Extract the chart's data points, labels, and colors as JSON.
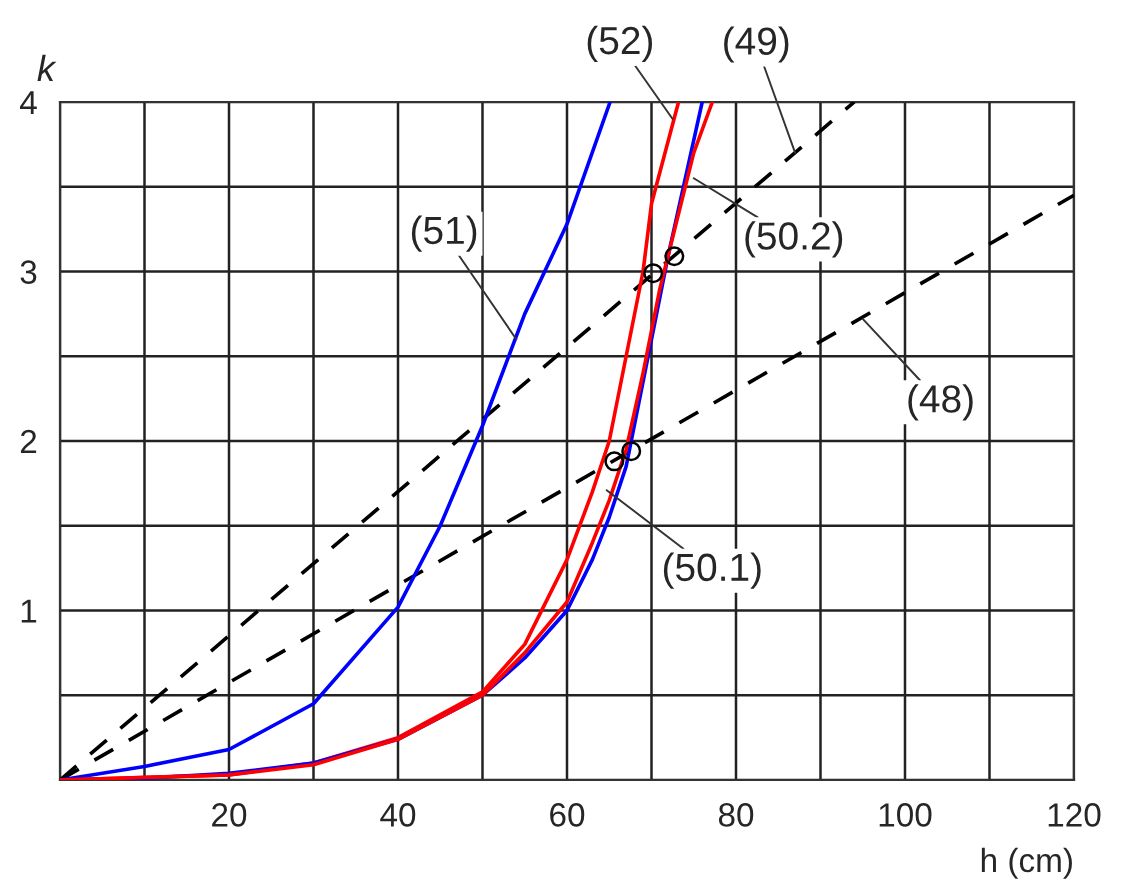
{
  "chart_data": {
    "type": "line",
    "xlabel": "h (cm)",
    "ylabel": "k",
    "xlim": [
      0,
      120
    ],
    "ylim": [
      0,
      4
    ],
    "xticks": [
      {
        "value": 0,
        "label": null
      },
      {
        "value": 10,
        "label": null
      },
      20,
      {
        "value": 30,
        "label": null
      },
      40,
      {
        "value": 50,
        "label": null
      },
      60,
      {
        "value": 70,
        "label": null
      },
      80,
      {
        "value": 90,
        "label": null
      },
      100,
      {
        "value": 110,
        "label": null
      },
      120
    ],
    "yticks": [
      {
        "value": 0,
        "label": null
      },
      {
        "value": 0.5,
        "label": null
      },
      1,
      {
        "value": 1.5,
        "label": null
      },
      2,
      {
        "value": 2.5,
        "label": null
      },
      3,
      {
        "value": 3.5,
        "label": null
      },
      4
    ],
    "grid": true,
    "legend": false,
    "marker": "none",
    "series": [
      {
        "color": "#000000",
        "line_style": "dashed",
        "x": [
          0,
          94
        ],
        "values": [
          0,
          4
        ]
      },
      {
        "color": "#000000",
        "line_style": "dashed",
        "x": [
          0,
          120
        ],
        "values": [
          0,
          3.45
        ]
      },
      {
        "color": "#0000ff",
        "line_style": "solid",
        "x": [
          0,
          10,
          20,
          30,
          40,
          45,
          50,
          55,
          60,
          65.1
        ],
        "values": [
          0,
          0.08,
          0.18,
          0.45,
          1.02,
          1.5,
          2.09,
          2.75,
          3.28,
          4
        ]
      },
      {
        "color": "#ff0000",
        "line_style": "solid",
        "x": [
          0,
          20,
          30,
          40,
          50,
          55,
          60,
          63,
          65,
          67,
          69,
          70,
          73.2
        ],
        "values": [
          0,
          0.03,
          0.1,
          0.25,
          0.52,
          0.8,
          1.3,
          1.7,
          2.0,
          2.5,
          3.0,
          3.4,
          4
        ]
      },
      {
        "color": "#0000ff",
        "line_style": "solid",
        "x": [
          0,
          10,
          20,
          30,
          40,
          50,
          55,
          60,
          63,
          65,
          67,
          68,
          70,
          72,
          74,
          76
        ],
        "values": [
          0,
          0.01,
          0.04,
          0.1,
          0.24,
          0.5,
          0.72,
          1.0,
          1.3,
          1.55,
          1.85,
          2.1,
          2.6,
          3.1,
          3.55,
          4
        ]
      },
      {
        "color": "#ff0000",
        "line_style": "solid",
        "x": [
          0,
          20,
          30,
          40,
          50,
          55,
          60,
          63,
          65,
          67,
          69,
          71,
          73,
          75,
          77.2
        ],
        "values": [
          0,
          0.03,
          0.09,
          0.24,
          0.5,
          0.75,
          1.05,
          1.4,
          1.65,
          1.95,
          2.4,
          2.9,
          3.3,
          3.7,
          4
        ]
      },
      {
        "type": "scatter",
        "color": "#000000",
        "marker": "circle",
        "x": [
          65.6,
          67.6,
          70.2,
          72.7
        ],
        "values": [
          1.88,
          1.94,
          2.99,
          3.09
        ]
      }
    ],
    "annotations": [
      {
        "text": "(51)",
        "x": 54,
        "y": 2.6
      },
      {
        "text": "(52)",
        "x": 72.5,
        "y": 3.9
      },
      {
        "text": "(49)",
        "x": 87,
        "y": 3.7
      },
      {
        "text": "(50.2)",
        "x": 75,
        "y": 3.55
      },
      {
        "text": "(48)",
        "x": 95,
        "y": 2.72
      },
      {
        "text": "(50.1)",
        "x": 64.7,
        "y": 1.71
      }
    ]
  }
}
